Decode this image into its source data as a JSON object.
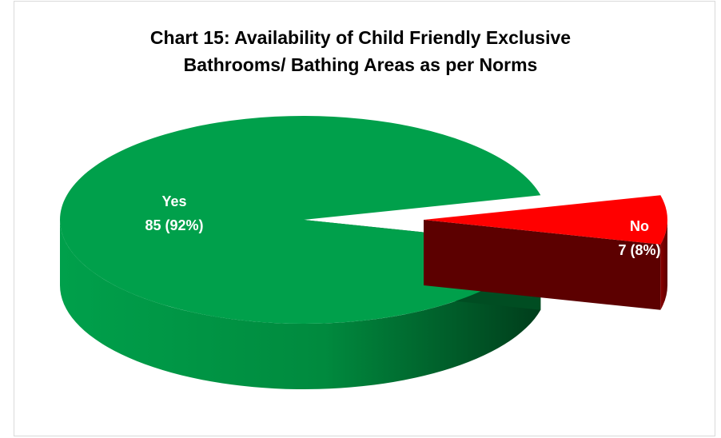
{
  "chart_data": {
    "type": "pie",
    "title_lines": [
      "Chart 15: Availability of Child Friendly Exclusive",
      "Bathrooms/ Bathing Areas as per Norms"
    ],
    "slices": [
      {
        "label": "Yes",
        "value": 85,
        "percent": "92%",
        "display": "85 (92%)",
        "color": "#00a04b",
        "side_color": "#008a3e",
        "dark_color": "#004d22",
        "label_color": "#ffffff"
      },
      {
        "label": "No",
        "value": 7,
        "percent": "8%",
        "display": "7 (8%)",
        "color": "#ff0000",
        "side_color": "#800000",
        "dark_color": "#5c0000",
        "label_color": "#ffffff"
      }
    ],
    "legend": "none",
    "style": "3d-exploded"
  }
}
